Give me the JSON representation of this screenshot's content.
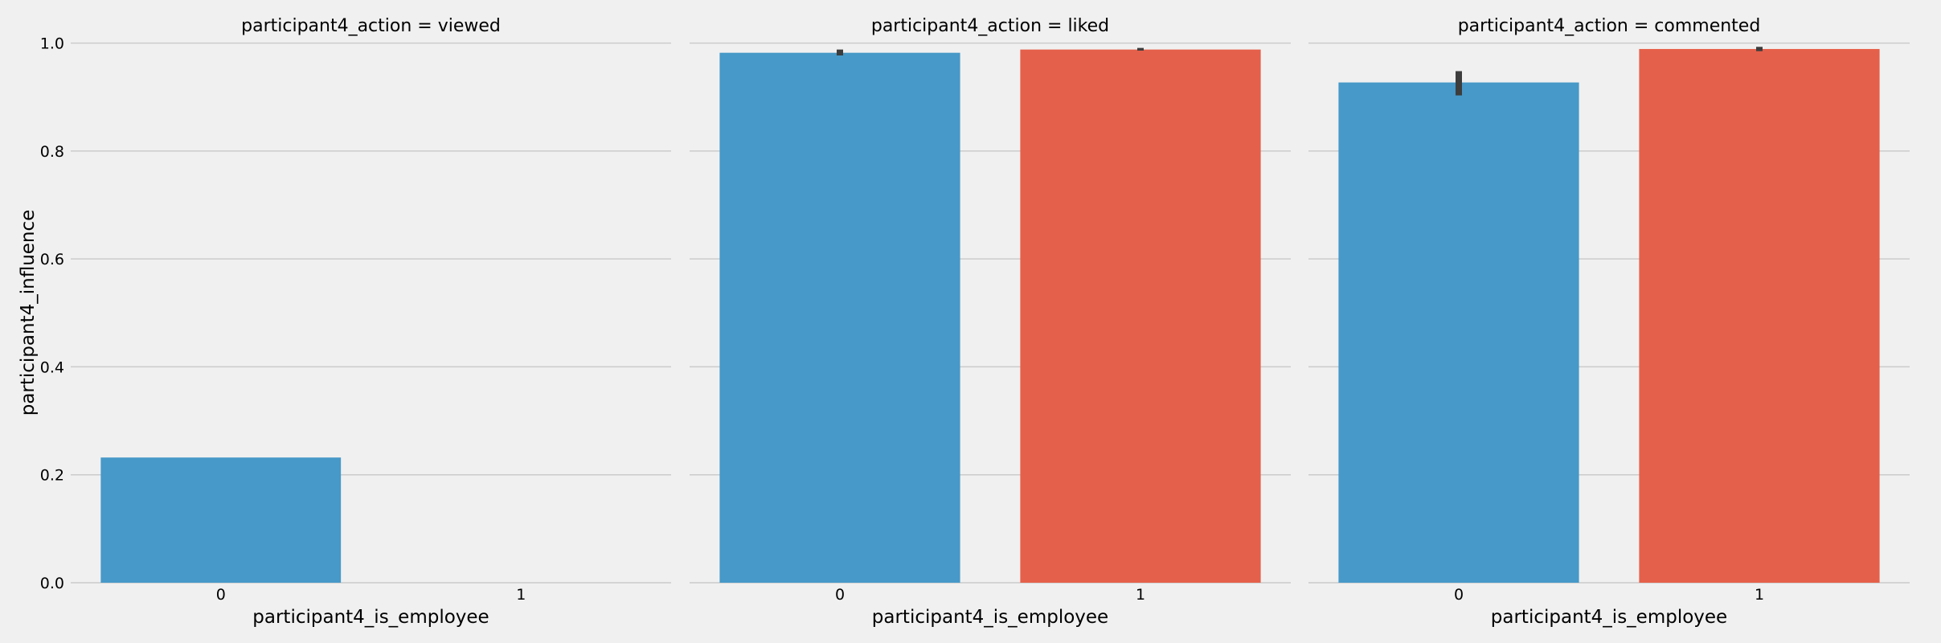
{
  "chart_data": {
    "type": "bar",
    "ylabel": "participant4_influence",
    "ylim": [
      0,
      1.05
    ],
    "yticks": [
      "0.0",
      "0.2",
      "0.4",
      "0.6",
      "0.8",
      "1.0"
    ],
    "ytick_values": [
      0.0,
      0.2,
      0.4,
      0.6,
      0.8,
      1.0
    ],
    "grid": true,
    "colors": {
      "0": "#4699c8",
      "1": "#e5604a",
      "errorbar": "#3d3d3d"
    },
    "facets": [
      {
        "title": "participant4_action = viewed",
        "xlabel": "participant4_is_employee",
        "categories": [
          "0",
          "1"
        ],
        "values": [
          0.232,
          null
        ],
        "errors": [
          [
            0.232,
            0.232
          ],
          null
        ]
      },
      {
        "title": "participant4_action = liked",
        "xlabel": "participant4_is_employee",
        "categories": [
          "0",
          "1"
        ],
        "values": [
          0.982,
          0.988
        ],
        "errors": [
          [
            0.977,
            0.988
          ],
          [
            0.986,
            0.991
          ]
        ]
      },
      {
        "title": "participant4_action = commented",
        "xlabel": "participant4_is_employee",
        "categories": [
          "0",
          "1"
        ],
        "values": [
          0.927,
          0.989
        ],
        "errors": [
          [
            0.903,
            0.948
          ],
          [
            0.985,
            0.993
          ]
        ]
      }
    ]
  }
}
